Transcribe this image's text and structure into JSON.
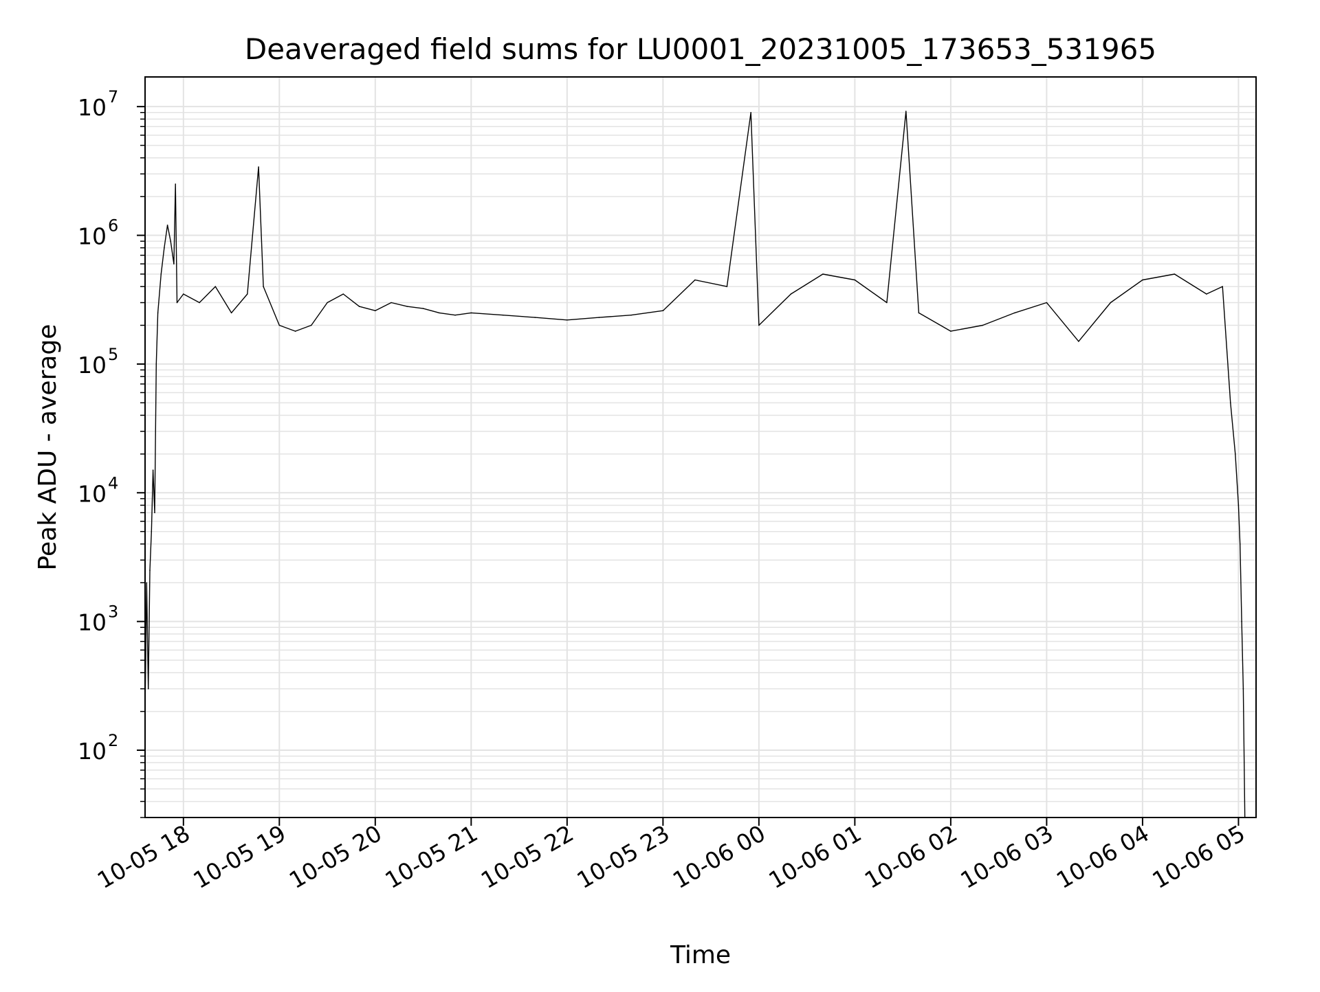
{
  "chart_data": {
    "type": "line",
    "title": "Deaveraged field sums for LU0001_20231005_173653_531965",
    "xlabel": "Time",
    "ylabel": "Peak ADU - average",
    "yscale": "log",
    "ylim": [
      30,
      17000000
    ],
    "xlim": [
      "2023-10-05 17:36",
      "2023-10-06 05:11"
    ],
    "grid": true,
    "line_color": "#000000",
    "grid_color": "#e3e3e3",
    "x_ticks": [
      {
        "value": "2023-10-05 18:00",
        "label": "10-05 18"
      },
      {
        "value": "2023-10-05 19:00",
        "label": "10-05 19"
      },
      {
        "value": "2023-10-05 20:00",
        "label": "10-05 20"
      },
      {
        "value": "2023-10-05 21:00",
        "label": "10-05 21"
      },
      {
        "value": "2023-10-05 22:00",
        "label": "10-05 22"
      },
      {
        "value": "2023-10-05 23:00",
        "label": "10-05 23"
      },
      {
        "value": "2023-10-06 00:00",
        "label": "10-06 00"
      },
      {
        "value": "2023-10-06 01:00",
        "label": "10-06 01"
      },
      {
        "value": "2023-10-06 02:00",
        "label": "10-06 02"
      },
      {
        "value": "2023-10-06 03:00",
        "label": "10-06 03"
      },
      {
        "value": "2023-10-06 04:00",
        "label": "10-06 04"
      },
      {
        "value": "2023-10-06 05:00",
        "label": "10-06 05"
      }
    ],
    "y_ticks": [
      {
        "value": 100,
        "base": "10",
        "exp": "2"
      },
      {
        "value": 1000,
        "base": "10",
        "exp": "3"
      },
      {
        "value": 10000,
        "base": "10",
        "exp": "4"
      },
      {
        "value": 100000,
        "base": "10",
        "exp": "5"
      },
      {
        "value": 1000000,
        "base": "10",
        "exp": "6"
      },
      {
        "value": 10000000,
        "base": "10",
        "exp": "7"
      }
    ],
    "series": [
      {
        "points": [
          [
            "2023-10-05 17:36",
            200
          ],
          [
            "2023-10-05 17:37",
            2000
          ],
          [
            "2023-10-05 17:38",
            300
          ],
          [
            "2023-10-05 17:39",
            2500
          ],
          [
            "2023-10-05 17:40",
            5000
          ],
          [
            "2023-10-05 17:41",
            15000
          ],
          [
            "2023-10-05 17:42",
            7000
          ],
          [
            "2023-10-05 17:43",
            100000
          ],
          [
            "2023-10-05 17:44",
            250000
          ],
          [
            "2023-10-05 17:46",
            500000
          ],
          [
            "2023-10-05 17:48",
            800000
          ],
          [
            "2023-10-05 17:50",
            1200000
          ],
          [
            "2023-10-05 17:52",
            900000
          ],
          [
            "2023-10-05 17:54",
            600000
          ],
          [
            "2023-10-05 17:55",
            2500000
          ],
          [
            "2023-10-05 17:56",
            300000
          ],
          [
            "2023-10-05 18:00",
            350000
          ],
          [
            "2023-10-05 18:10",
            300000
          ],
          [
            "2023-10-05 18:20",
            400000
          ],
          [
            "2023-10-05 18:30",
            250000
          ],
          [
            "2023-10-05 18:40",
            350000
          ],
          [
            "2023-10-05 18:47",
            3400000
          ],
          [
            "2023-10-05 18:50",
            400000
          ],
          [
            "2023-10-05 19:00",
            200000
          ],
          [
            "2023-10-05 19:10",
            180000
          ],
          [
            "2023-10-05 19:20",
            200000
          ],
          [
            "2023-10-05 19:30",
            300000
          ],
          [
            "2023-10-05 19:40",
            350000
          ],
          [
            "2023-10-05 19:50",
            280000
          ],
          [
            "2023-10-05 20:00",
            260000
          ],
          [
            "2023-10-05 20:10",
            300000
          ],
          [
            "2023-10-05 20:20",
            280000
          ],
          [
            "2023-10-05 20:30",
            270000
          ],
          [
            "2023-10-05 20:40",
            250000
          ],
          [
            "2023-10-05 20:50",
            240000
          ],
          [
            "2023-10-05 21:00",
            250000
          ],
          [
            "2023-10-05 21:20",
            240000
          ],
          [
            "2023-10-05 21:40",
            230000
          ],
          [
            "2023-10-05 22:00",
            220000
          ],
          [
            "2023-10-05 22:20",
            230000
          ],
          [
            "2023-10-05 22:40",
            240000
          ],
          [
            "2023-10-05 23:00",
            260000
          ],
          [
            "2023-10-05 23:20",
            450000
          ],
          [
            "2023-10-05 23:40",
            400000
          ],
          [
            "2023-10-05 23:55",
            9000000
          ],
          [
            "2023-10-06 00:00",
            200000
          ],
          [
            "2023-10-06 00:20",
            350000
          ],
          [
            "2023-10-06 00:40",
            500000
          ],
          [
            "2023-10-06 01:00",
            450000
          ],
          [
            "2023-10-06 01:20",
            300000
          ],
          [
            "2023-10-06 01:32",
            9200000
          ],
          [
            "2023-10-06 01:40",
            250000
          ],
          [
            "2023-10-06 02:00",
            180000
          ],
          [
            "2023-10-06 02:20",
            200000
          ],
          [
            "2023-10-06 02:40",
            250000
          ],
          [
            "2023-10-06 03:00",
            300000
          ],
          [
            "2023-10-06 03:20",
            150000
          ],
          [
            "2023-10-06 03:40",
            300000
          ],
          [
            "2023-10-06 04:00",
            450000
          ],
          [
            "2023-10-06 04:20",
            500000
          ],
          [
            "2023-10-06 04:40",
            350000
          ],
          [
            "2023-10-06 04:50",
            400000
          ],
          [
            "2023-10-06 04:55",
            50000
          ],
          [
            "2023-10-06 04:58",
            20000
          ],
          [
            "2023-10-06 05:00",
            8000
          ],
          [
            "2023-10-06 05:01",
            4000
          ],
          [
            "2023-10-06 05:02",
            1000
          ],
          [
            "2023-10-06 05:03",
            300
          ],
          [
            "2023-10-06 05:04",
            30
          ]
        ]
      }
    ]
  }
}
